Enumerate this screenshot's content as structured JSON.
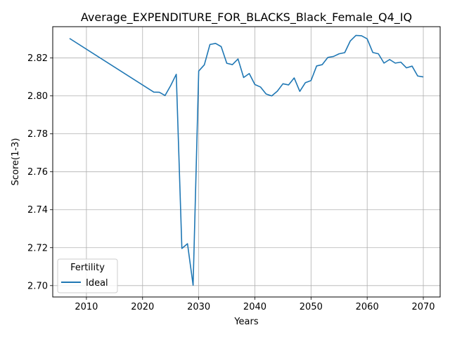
{
  "chart_data": {
    "type": "line",
    "title": "Average_EXPENDITURE_FOR_BLACKS_Black_Female_Q4_IQ",
    "xlabel": "Years",
    "ylabel": "Score(1-3)",
    "xlim": [
      2004,
      2073
    ],
    "ylim": [
      2.694,
      2.8365
    ],
    "xticks": [
      2010,
      2020,
      2030,
      2040,
      2050,
      2060,
      2070
    ],
    "yticks": [
      2.7,
      2.72,
      2.74,
      2.76,
      2.78,
      2.8,
      2.82
    ],
    "ytick_labels": [
      "2.70",
      "2.72",
      "2.74",
      "2.76",
      "2.78",
      "2.80",
      "2.82"
    ],
    "grid": true,
    "legend": {
      "title": "Fertility",
      "placement": "lower-left"
    },
    "series": [
      {
        "name": "Ideal",
        "color": "#1f77b4",
        "x": [
          2007,
          2022,
          2023,
          2024,
          2025,
          2026,
          2027,
          2028,
          2029,
          2030,
          2031,
          2032,
          2033,
          2034,
          2035,
          2036,
          2037,
          2038,
          2039,
          2040,
          2041,
          2042,
          2043,
          2044,
          2045,
          2046,
          2047,
          2048,
          2049,
          2050,
          2051,
          2052,
          2053,
          2054,
          2055,
          2056,
          2057,
          2058,
          2059,
          2060,
          2061,
          2062,
          2063,
          2064,
          2065,
          2066,
          2067,
          2068,
          2069,
          2070
        ],
        "y": [
          2.8303,
          2.802,
          2.8019,
          2.8002,
          2.8054,
          2.8114,
          2.7196,
          2.7221,
          2.7002,
          2.8131,
          2.8164,
          2.8271,
          2.8277,
          2.826,
          2.8172,
          2.8165,
          2.8195,
          2.8097,
          2.8118,
          2.806,
          2.8047,
          2.801,
          2.8,
          2.8025,
          2.8064,
          2.8058,
          2.8095,
          2.8024,
          2.807,
          2.8081,
          2.8158,
          2.8165,
          2.8203,
          2.8208,
          2.8222,
          2.8228,
          2.829,
          2.8319,
          2.8317,
          2.8301,
          2.8229,
          2.8222,
          2.8173,
          2.8192,
          2.8173,
          2.8178,
          2.8148,
          2.8157,
          2.8105,
          2.81
        ]
      }
    ]
  }
}
